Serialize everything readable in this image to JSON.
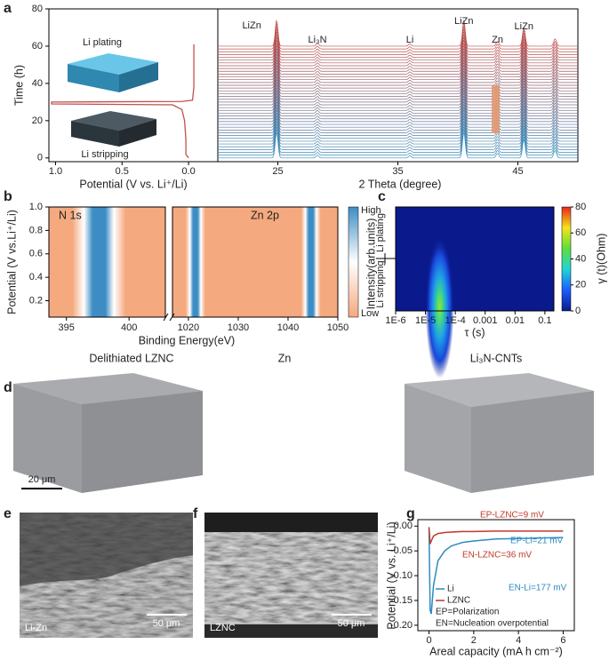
{
  "panel_labels": [
    "a",
    "b",
    "c",
    "d",
    "e",
    "f",
    "g"
  ],
  "chart_data": [
    {
      "type": "line",
      "xlabel": "Potential (V vs. Li⁺/Li)",
      "ylabel": "Time (h)",
      "xlim": [
        1.05,
        -0.22
      ],
      "xticks": [
        {
          "value": 1,
          "label": "1.0"
        },
        0.5,
        {
          "value": 0,
          "label": "0.0"
        }
      ],
      "ylim": [
        -2,
        80
      ],
      "yticks": [
        0,
        20,
        40,
        60,
        80
      ],
      "annotations": [
        "Li plating",
        "Li stripping"
      ],
      "series": [
        {
          "color": "#c0504d",
          "x": [
            0.0,
            0.02,
            0.02,
            0.03,
            0.05,
            0.12,
            1.03,
            1.03,
            0.05,
            -0.03,
            -0.04,
            -0.04,
            -0.04,
            -0.04
          ],
          "values": [
            0,
            2,
            10,
            20,
            26,
            28.5,
            29,
            30,
            30.3,
            31,
            38,
            45,
            55,
            61
          ]
        }
      ]
    },
    {
      "type": "waterfall",
      "xlabel": "2 Theta (degree)",
      "xlim": [
        20,
        50
      ],
      "xticks": [
        25,
        35,
        45
      ],
      "times": [
        0,
        1.5,
        3,
        4.5,
        6,
        7.5,
        9,
        10.5,
        12,
        13.5,
        15,
        16.5,
        18,
        19.5,
        21,
        22.5,
        24,
        25.5,
        27,
        28.5,
        30,
        31.5,
        33,
        34.5,
        36,
        37.5,
        39,
        40.5,
        42,
        43.5,
        45,
        46.5,
        48,
        49.5,
        51,
        52.5,
        54,
        55.5,
        57,
        58.5,
        60
      ],
      "peaks": [
        {
          "x": 24.9,
          "height": 14,
          "label": "LiZn"
        },
        {
          "x": 28.3,
          "height": 1.5,
          "label": "Li₃N"
        },
        {
          "x": 36.0,
          "height": 1.2,
          "label": "Li"
        },
        {
          "x": 40.5,
          "height": 14,
          "label": "LiZn"
        },
        {
          "x": 43.3,
          "height": 2.5,
          "label": "Zn"
        },
        {
          "x": 45.5,
          "height": 10,
          "label": "LiZn"
        },
        {
          "x": 48.1,
          "height": 4
        }
      ],
      "color_start": "#3d8fbf",
      "color_end": "#c0504d",
      "highlight_color": "#e2946a"
    },
    {
      "type": "heatmap",
      "xlabel": "Binding Energy(eV)",
      "ylabel": "Potential (V vs.Li⁺/Li)",
      "x_segments": [
        [
          393.6,
          402.9
        ],
        [
          1016.8,
          1050
        ]
      ],
      "xticks": [
        395,
        400,
        1020,
        1030,
        1040,
        1050
      ],
      "ylim": [
        0.06,
        1.0
      ],
      "yticks": [
        0.2,
        0.4,
        0.6,
        0.8,
        {
          "value": 1,
          "label": "1.0"
        }
      ],
      "annotations": [
        "N 1s",
        "Zn 2p"
      ],
      "bands": [
        397.6,
        1021.4,
        1044.6
      ],
      "colorbar": {
        "label": "Intensity(arb.units)",
        "high": "High",
        "low": "Low",
        "colors": [
          "#f4a97f",
          "#ffffff",
          "#3d8dc4"
        ]
      }
    },
    {
      "type": "drt",
      "xlabel": "τ (s)",
      "log_x": true,
      "xlim": [
        1e-06,
        0.2
      ],
      "xticks": [
        {
          "value": 1e-06,
          "label": "1E-6"
        },
        {
          "value": 1e-05,
          "label": "1E-5"
        },
        {
          "value": 0.0001,
          "label": "1E-4"
        },
        0.001,
        0.01,
        0.1
      ],
      "annotations": [
        "Li plating",
        "Li stripping"
      ],
      "peaks": [
        {
          "tau": 3e-05,
          "gamma": 55
        }
      ],
      "colorbar": {
        "label": "γ (t)(Ohm)",
        "ylim": [
          0,
          80
        ],
        "yticks": [
          0,
          20,
          40,
          60,
          80
        ],
        "colors": [
          "#0a1a8c",
          "#1e5cff",
          "#1fd6d6",
          "#5ede3a",
          "#f5e31b",
          "#e8261a"
        ]
      }
    },
    {
      "type": "line",
      "xlabel": "Areal capacity (mA h cm⁻²)",
      "ylabel": "Potential (V vs. Li⁺/Li)",
      "xlim": [
        -0.5,
        6.5
      ],
      "xticks": [
        0,
        2,
        4,
        6
      ],
      "ylim": [
        -0.211,
        0.013
      ],
      "yticks": [
        {
          "value": 0,
          "label": "0.00"
        },
        -0.05,
        {
          "value": -0.1,
          "label": "-0.10"
        },
        -0.15,
        {
          "value": -0.2,
          "label": "-0.20"
        }
      ],
      "series": [
        {
          "name": "Li",
          "color": "#2e8bc0",
          "x": [
            0,
            0.05,
            0.1,
            0.2,
            0.4,
            0.7,
            1,
            1.5,
            2,
            3,
            4,
            5,
            6
          ],
          "values": [
            -0.005,
            -0.17,
            -0.177,
            -0.12,
            -0.07,
            -0.05,
            -0.04,
            -0.033,
            -0.03,
            -0.026,
            -0.025,
            -0.024,
            -0.023
          ]
        },
        {
          "name": "LZNC",
          "color": "#c0392b",
          "x": [
            0,
            0.05,
            0.1,
            0.2,
            0.4,
            0.7,
            1,
            1.5,
            2,
            3,
            4,
            5,
            6
          ],
          "values": [
            -0.002,
            -0.036,
            -0.03,
            -0.02,
            -0.015,
            -0.013,
            -0.012,
            -0.011,
            -0.011,
            -0.01,
            -0.01,
            -0.01,
            -0.01
          ]
        }
      ],
      "annotations": [
        {
          "text": "EP-LZNC=9 mV",
          "color": "#c0392b"
        },
        {
          "text": "EP-Li=21 mV",
          "color": "#2e8bc0"
        },
        {
          "text": "EN-LZNC=36 mV",
          "color": "#c0392b"
        },
        {
          "text": "EN-Li=177 mV",
          "color": "#2e8bc0"
        },
        {
          "text": "EP=Polarization",
          "color": "#222222"
        },
        {
          "text": "EN=Nucleation overpotential",
          "color": "#222222"
        }
      ]
    }
  ],
  "panels": {
    "d": {
      "titles": [
        "Delithiated LZNC",
        "Zn",
        "Li₃N-CNTs"
      ],
      "scale_bar": "20 μm"
    },
    "e": {
      "label": "Li-Zn",
      "scale_bar": "50 μm"
    },
    "f": {
      "label": "LZNC",
      "scale_bar": "50 μm"
    }
  }
}
